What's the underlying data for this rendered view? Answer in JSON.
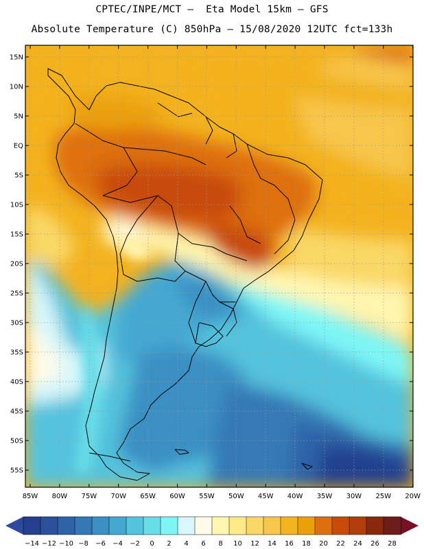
{
  "header": {
    "line1": "CPTEC/INPE/MCT –  Eta Model 15km – GFS",
    "line2": "Absolute Temperature (C) 850hPa – 15/08/2020 12UTC fct=133h"
  },
  "map": {
    "lat_labels": [
      "15N",
      "10N",
      "5N",
      "EQ",
      "5S",
      "10S",
      "15S",
      "20S",
      "25S",
      "30S",
      "35S",
      "40S",
      "45S",
      "50S",
      "55S"
    ],
    "lon_labels": [
      "85W",
      "80W",
      "75W",
      "70W",
      "65W",
      "60W",
      "55W",
      "50W",
      "45W",
      "40W",
      "35W",
      "30W",
      "25W",
      "20W"
    ],
    "field": "Absolute Temperature (C) 850hPa",
    "region": "South America"
  },
  "colorbar": {
    "labels": [
      "-14",
      "-12",
      "-10",
      "-8",
      "-6",
      "-4",
      "-2",
      "0",
      "2",
      "4",
      "6",
      "8",
      "10",
      "12",
      "14",
      "16",
      "18",
      "20",
      "22",
      "24",
      "26",
      "28"
    ],
    "colors": [
      "#233f8e",
      "#2a5199",
      "#2f63a8",
      "#3479b6",
      "#3a8fc3",
      "#44a8d1",
      "#54c3dd",
      "#68dde8",
      "#7ef6f6",
      "#d7f7fa",
      "#fffbe8",
      "#fff6b0",
      "#fcea86",
      "#f9d866",
      "#f7c64b",
      "#f3b21f",
      "#eba00a",
      "#de6f10",
      "#c84b0a",
      "#b13d08",
      "#8a2a0c",
      "#6f1d1b"
    ],
    "low_color": "#2d4aa0",
    "high_color": "#7a0f28"
  }
}
